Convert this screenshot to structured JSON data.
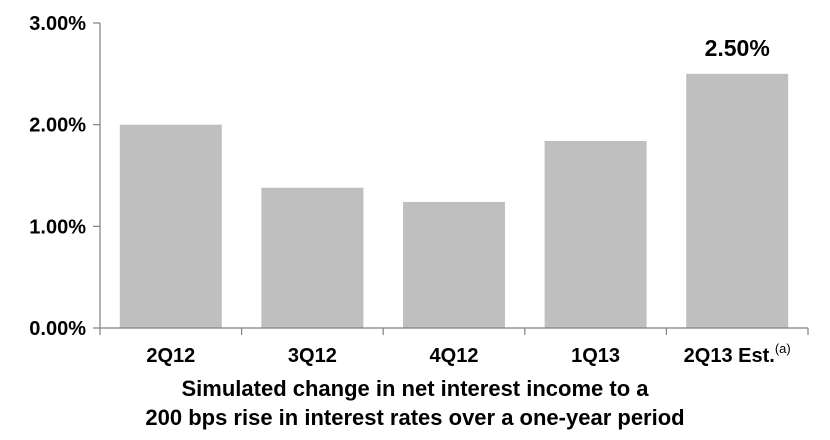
{
  "chart_data": {
    "type": "bar",
    "categories": [
      "2Q12",
      "3Q12",
      "4Q12",
      "1Q13",
      "2Q13 Est."
    ],
    "category_superscripts": [
      "",
      "",
      "",
      "",
      "(a)"
    ],
    "values": [
      2.0,
      1.38,
      1.24,
      1.84,
      2.5
    ],
    "value_labels": [
      "",
      "",
      "",
      "",
      "2.50%"
    ],
    "y_tick_labels": [
      "0.00%",
      "1.00%",
      "2.00%",
      "3.00%"
    ],
    "y_tick_values": [
      0,
      1,
      2,
      3
    ],
    "ylim": [
      0,
      3
    ],
    "title": "",
    "xlabel_lines": [
      "Simulated change in net interest income to a",
      "200 bps rise in interest rates over a one-year period"
    ],
    "ylabel": "",
    "grid": false,
    "bar_color": "#bfbfbf",
    "axis_color": "#808080"
  }
}
